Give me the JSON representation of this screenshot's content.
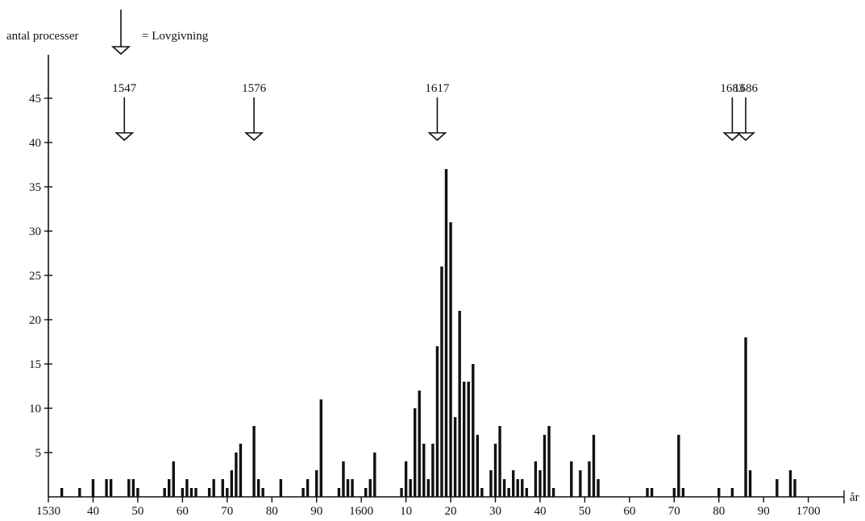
{
  "chart_data": {
    "type": "bar",
    "ylabel": "antal processer",
    "xlabel": "år",
    "legend": {
      "symbol": "arrow-down",
      "text": "= Lovgivning"
    },
    "xlim": [
      1530,
      1708
    ],
    "ylim": [
      0,
      50
    ],
    "x_ticks": [
      {
        "value": 1530,
        "label": "1530"
      },
      {
        "value": 1540,
        "label": "40"
      },
      {
        "value": 1550,
        "label": "50"
      },
      {
        "value": 1560,
        "label": "60"
      },
      {
        "value": 1570,
        "label": "70"
      },
      {
        "value": 1580,
        "label": "80"
      },
      {
        "value": 1590,
        "label": "90"
      },
      {
        "value": 1600,
        "label": "1600"
      },
      {
        "value": 1610,
        "label": "10"
      },
      {
        "value": 1620,
        "label": "20"
      },
      {
        "value": 1630,
        "label": "30"
      },
      {
        "value": 1640,
        "label": "40"
      },
      {
        "value": 1650,
        "label": "50"
      },
      {
        "value": 1660,
        "label": "60"
      },
      {
        "value": 1670,
        "label": "70"
      },
      {
        "value": 1680,
        "label": "80"
      },
      {
        "value": 1690,
        "label": "90"
      },
      {
        "value": 1700,
        "label": "1700"
      }
    ],
    "y_ticks": [
      {
        "value": 5,
        "label": "5"
      },
      {
        "value": 10,
        "label": "10"
      },
      {
        "value": 15,
        "label": "15"
      },
      {
        "value": 20,
        "label": "20"
      },
      {
        "value": 25,
        "label": "25"
      },
      {
        "value": 30,
        "label": "30"
      },
      {
        "value": 35,
        "label": "35"
      },
      {
        "value": 40,
        "label": "40"
      },
      {
        "value": 45,
        "label": "45"
      }
    ],
    "laws": [
      {
        "year": 1547,
        "label": "1547"
      },
      {
        "year": 1576,
        "label": "1576"
      },
      {
        "year": 1617,
        "label": "1617"
      },
      {
        "year": 1683,
        "label": "1683"
      },
      {
        "year": 1686,
        "label": "1686"
      }
    ],
    "series": [
      {
        "x": [
          1533,
          1537,
          1540,
          1543,
          1544,
          1548,
          1549,
          1550,
          1556,
          1557,
          1558,
          1560,
          1561,
          1562,
          1563,
          1566,
          1567,
          1569,
          1570,
          1571,
          1572,
          1573,
          1576,
          1577,
          1578,
          1582,
          1587,
          1588,
          1590,
          1591,
          1595,
          1596,
          1597,
          1598,
          1601,
          1602,
          1603,
          1609,
          1610,
          1611,
          1612,
          1613,
          1614,
          1615,
          1616,
          1617,
          1618,
          1619,
          1620,
          1621,
          1622,
          1623,
          1624,
          1625,
          1626,
          1627,
          1629,
          1630,
          1631,
          1632,
          1633,
          1634,
          1635,
          1636,
          1637,
          1639,
          1640,
          1641,
          1642,
          1643,
          1647,
          1649,
          1651,
          1652,
          1653,
          1664,
          1665,
          1670,
          1671,
          1672,
          1680,
          1683,
          1686,
          1687,
          1693,
          1696,
          1697
        ],
        "values": [
          1,
          1,
          2,
          2,
          2,
          2,
          2,
          1,
          1,
          2,
          4,
          1,
          2,
          1,
          1,
          1,
          2,
          2,
          1,
          3,
          5,
          6,
          8,
          2,
          1,
          2,
          1,
          2,
          3,
          11,
          1,
          4,
          2,
          2,
          1,
          2,
          5,
          1,
          4,
          2,
          10,
          12,
          6,
          2,
          6,
          17,
          26,
          37,
          31,
          9,
          21,
          13,
          13,
          15,
          7,
          1,
          3,
          6,
          8,
          2,
          1,
          3,
          2,
          2,
          1,
          4,
          3,
          7,
          8,
          1,
          4,
          3,
          4,
          7,
          2,
          1,
          1,
          1,
          7,
          1,
          1,
          1,
          18,
          3,
          2,
          3,
          2
        ]
      }
    ]
  }
}
